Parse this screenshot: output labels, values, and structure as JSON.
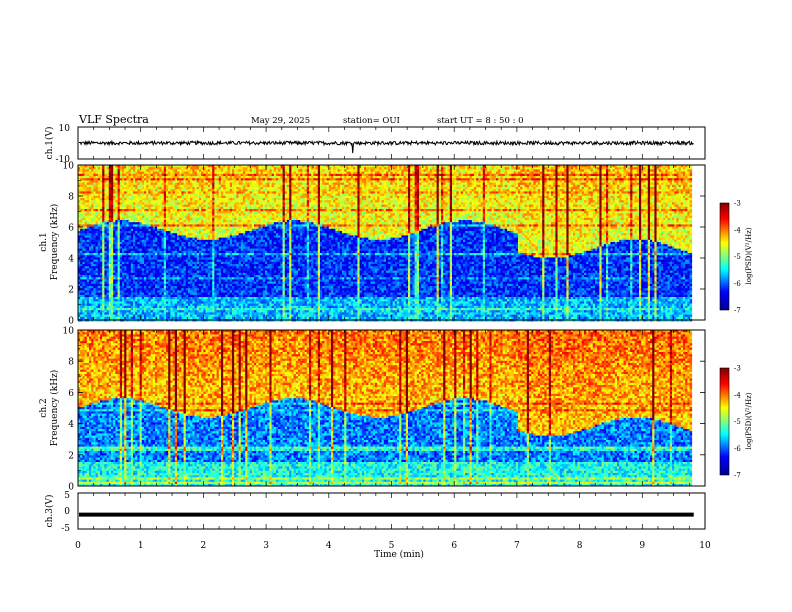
{
  "header": {
    "title": "VLF Spectra",
    "date": "May 29, 2025",
    "station": "station= OUI",
    "start_ut": "start  UT =   8 : 50 : 0"
  },
  "chart_data": [
    {
      "type": "line",
      "panel": "ch1-waveform",
      "ylabel": "ch.1(V)",
      "ylim": [
        -10,
        10
      ],
      "yticks": [
        "10",
        "-10"
      ],
      "xlim": [
        0,
        10
      ],
      "series_level": 0,
      "line_color": "#000000"
    },
    {
      "type": "heatmap",
      "panel": "ch1-spectrogram",
      "ylabel_lines": [
        "ch.1",
        "Frequency (kHz)"
      ],
      "ylim": [
        0,
        10
      ],
      "yticks": [
        "0",
        "2",
        "4",
        "6",
        "8",
        "10"
      ],
      "xlim": [
        0,
        10
      ],
      "data_end_min": 9.8,
      "colorbar": {
        "label": "log(PSD)(V²/Hz)",
        "range": [
          -7,
          -3
        ],
        "ticks": [
          "-3",
          "-4",
          "-5",
          "-6",
          "-7"
        ]
      },
      "profile_lowfreq_log": -6.2,
      "profile_highfreq_log": -4.6,
      "transition_khz": 5.8
    },
    {
      "type": "heatmap",
      "panel": "ch2-spectrogram",
      "ylabel_lines": [
        "ch.2",
        "Frequency (kHz)"
      ],
      "ylim": [
        0,
        10
      ],
      "yticks": [
        "0",
        "2",
        "4",
        "6",
        "8",
        "10"
      ],
      "xlim": [
        0,
        10
      ],
      "data_end_min": 9.8,
      "colorbar": {
        "label": "log(PSD)(V²/Hz)",
        "range": [
          -7,
          -3
        ],
        "ticks": [
          "-3",
          "-4",
          "-5",
          "-6",
          "-7"
        ]
      },
      "profile_lowfreq_log": -5.9,
      "profile_highfreq_log": -4.3,
      "transition_khz": 5.0
    },
    {
      "type": "line",
      "panel": "ch3-waveform",
      "ylabel": "ch.3(V)",
      "ylim": [
        -5,
        5
      ],
      "yticks": [
        "5",
        "0",
        "-5"
      ],
      "xlim": [
        0,
        10
      ],
      "series_level": -1,
      "line_color": "#000000",
      "xlabel": "Time (min)",
      "xticks": [
        "0",
        "1",
        "2",
        "3",
        "4",
        "5",
        "6",
        "7",
        "8",
        "9",
        "10"
      ]
    }
  ],
  "colors": {
    "colormap": [
      "#00008f",
      "#0000ff",
      "#00ffff",
      "#7fff7f",
      "#ffff00",
      "#ff0000",
      "#800000"
    ],
    "axis": "#000000",
    "background": "#ffffff"
  }
}
